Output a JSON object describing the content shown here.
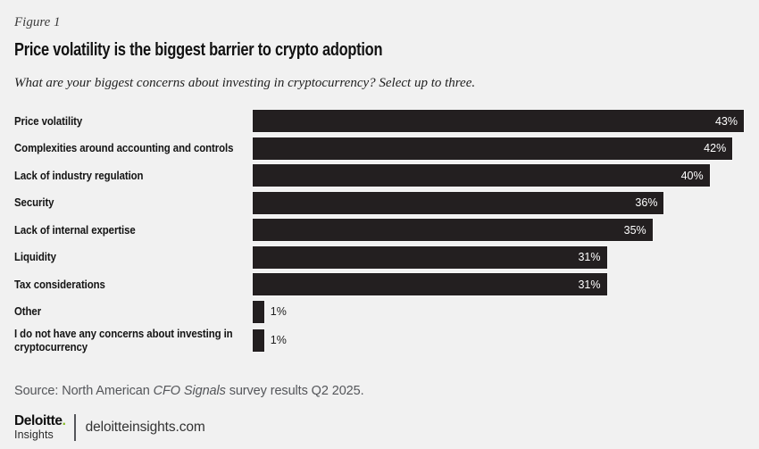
{
  "header": {
    "figure_label": "Figure 1",
    "title": "Price volatility is the biggest barrier to crypto adoption",
    "subtitle": "What are your biggest concerns about investing in cryptocurrency? Select up to three."
  },
  "chart_data": {
    "type": "bar",
    "orientation": "horizontal",
    "title": "Price volatility is the biggest barrier to crypto adoption",
    "categories": [
      "Price volatility",
      "Complexities around accounting and controls",
      "Lack of industry regulation",
      "Security",
      "Lack of internal expertise",
      "Liquidity",
      "Tax considerations",
      "Other",
      "I do not have any concerns about investing in cryptocurrency"
    ],
    "values": [
      43,
      42,
      40,
      36,
      35,
      31,
      31,
      1,
      1
    ],
    "value_labels": [
      "43%",
      "42%",
      "40%",
      "36%",
      "35%",
      "31%",
      "31%",
      "1%",
      "1%"
    ],
    "unit": "%",
    "xlim": [
      0,
      43
    ],
    "grid": false,
    "legend": false,
    "bar_color": "#231f20",
    "inside_label_min": 5,
    "inside_label_color": "#ffffff",
    "outside_label_color": "#1f1f1f"
  },
  "source": {
    "prefix": "Source: North American ",
    "italic_part": "CFO Signals",
    "suffix": " survey results Q2 2025."
  },
  "footer": {
    "logo_word": "Deloitte",
    "logo_dot": ".",
    "logo_sub": "Insights",
    "site": "deloitteinsights.com",
    "dot_color": "#86bc25"
  },
  "colors": {
    "background": "#f1f1f1",
    "bar": "#231f20",
    "accent_green": "#86bc25",
    "source_text": "#54565a"
  }
}
